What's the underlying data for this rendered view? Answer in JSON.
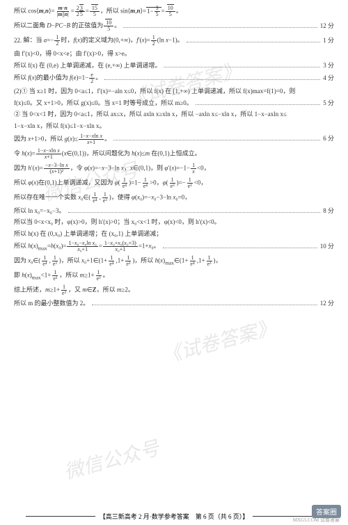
{
  "watermarks": [
    "《试卷答案》",
    "微信公众号",
    "《试卷答案》",
    "微信公众号"
  ],
  "lines": [
    {
      "text": "所以 cos⟨m,n⟩ = (m·n)/(|m||n|) = 2√3/(2√5) = √15/5，所以 sin⟨m,n⟩ = √(1−3/5) = √10/5。",
      "score": ""
    },
    {
      "text": "所以二面角 D−PC−B 的正弦值为 √10/5。",
      "score": "12 分"
    },
    {
      "text": "22. 解：当 a=−1/2 时，f(x) 的定义域为 (0,+∞)，f′(x)=1/2(ln x−1)。",
      "score": "1 分"
    },
    {
      "text": "由 f′(x)<0，得 0<x<e；由 f′(x)>0，得 x>e。",
      "score": ""
    },
    {
      "text": "所以 f(x) 在 (0,e) 上单调递减，在 (e,+∞) 上单调递增。",
      "score": "3 分"
    },
    {
      "text": "所以 f(x) 的最小值为 f(e)=1−e/2。",
      "score": "4 分"
    },
    {
      "text": "(2)① 当 x≥1 时，因为 0<a≤1，f′(x)=−aln x≤0，所以 f(x) 在 [1,+∞) 上单调递减，所以 f(x)max=f(1)=0，则",
      "score": ""
    },
    {
      "text": "f(x)≤0。又 x+1>0，所以 g(x)≤0。当 x=1 时等号成立，所以 m≥0。",
      "score": "5 分"
    },
    {
      "text": "② 当 0<x<1 时，因为 0<a≤1，所以 ax≤x，所以 axln x≥xln x，所以 −axln x≤−xln x，所以 1−x−axln x≤",
      "score": ""
    },
    {
      "text": "1−x−xln x，所以 f(x)≤1−x−xln x。",
      "score": ""
    },
    {
      "text": "因为 x+1>0，所以 g(x)≤ (1−x−xln x)/(x+1)。",
      "score": "6 分"
    },
    {
      "text": "令 h(x)= (1−x−xln x)/(x+1) (x∈(0,1))，所以问题化为 h(x)≤m 在 (0,1) 上恒成立。",
      "score": ""
    },
    {
      "text": "因为 h′(x)= (−x−3−ln x)/(x+1)²，令 φ(x)=−x−3−ln x，x∈(0,1)，则 φ′(x)=−1−1/x<0，",
      "score": ""
    },
    {
      "text": "所以 φ(x) 在 (0,1) 上单调递减。又因为 φ(1/e⁴)=1−1/e⁴>0，φ(1/e³)=−1/e³<0，",
      "score": ""
    },
    {
      "text": "所以存在唯一一个实数 x₀∈(1/e⁴, 1/e³)，使得 φ(x₀)=−x₀−3−ln x₀=0，",
      "score": ""
    },
    {
      "text": "所以 ln x₀=−x₀−3。",
      "score": "8 分"
    },
    {
      "text": "所以当 0<x<x₀ 时，φ(x)>0，则 h′(x)>0；当 x₀<x<1 时，φ(x)<0，则 h′(x)<0。",
      "score": ""
    },
    {
      "text": "所以 h(x) 在 (0,x₀) 上单调递增；在 (x₀,1) 上单调递减；",
      "score": ""
    },
    {
      "text": "所以 h(x)max=h(x₀)= (1−x₀−x₀ln x₀)/(x₀+1) = (1−x₀+x₀(x₀+3))/(x₀+1) = 1+x₀。",
      "score": "10 分"
    },
    {
      "text": "因为 x₀∈(1/e⁴, 1/e³)，所以 x₀+1∈(1+1/e⁴, 1+1/e³)，所以 h(x)max∈(1+1/e⁴, 1+1/e³)，",
      "score": ""
    },
    {
      "text": "即 h(x)max<1+1/e³，所以 m≥1+1/e³。",
      "score": ""
    },
    {
      "text": "综上所述，m≥1+1/e³，又 m∈Z，所以 m≥2。",
      "score": ""
    },
    {
      "text": "所以 m 的最小整数值为 2。",
      "score": "12 分"
    }
  ],
  "footer": "【高三新高考 2 月·数学参考答案　第 6 页（共 6 页）】",
  "badge": "答案圈",
  "badge_sub": "MXG5.COM 试卷答案",
  "colors": {
    "text": "#333333",
    "bg": "#ffffff",
    "dot": "#888888",
    "wm": "rgba(150,150,150,0.22)",
    "badge_bg": "#7a8a9a"
  }
}
